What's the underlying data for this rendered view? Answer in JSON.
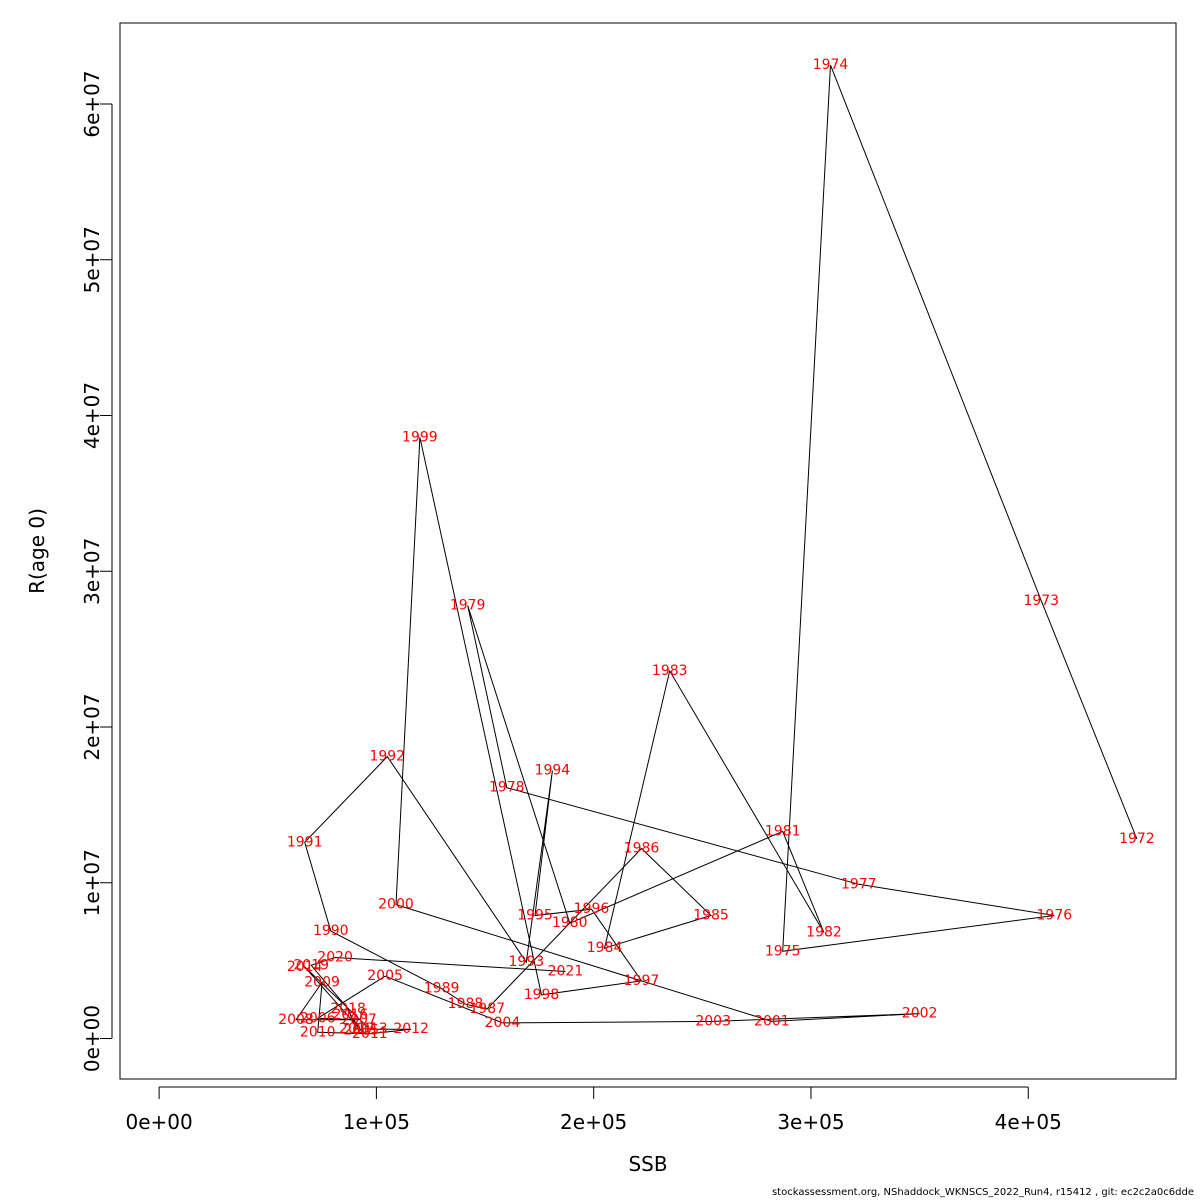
{
  "chart_data": {
    "type": "line",
    "xlabel": "SSB",
    "ylabel": "R(age 0)",
    "xlim": [
      -18000,
      468000
    ],
    "ylim": [
      -2600000,
      65200000
    ],
    "x_ticks": [
      0,
      100000,
      200000,
      300000,
      400000
    ],
    "x_tick_labels": [
      "0e+00",
      "1e+05",
      "2e+05",
      "3e+05",
      "4e+05"
    ],
    "y_ticks": [
      0,
      10000000,
      20000000,
      30000000,
      40000000,
      50000000,
      60000000
    ],
    "y_tick_labels": [
      "0e+00",
      "1e+07",
      "2e+07",
      "3e+07",
      "4e+07",
      "5e+07",
      "6e+07"
    ],
    "grid": false,
    "line_color": "#000000",
    "label_color": "#ff0000",
    "points": [
      {
        "year": "1972",
        "x": 450000,
        "y": 12800000
      },
      {
        "year": "1973",
        "x": 406000,
        "y": 28100000
      },
      {
        "year": "1974",
        "x": 309000,
        "y": 62500000
      },
      {
        "year": "1975",
        "x": 287000,
        "y": 5600000
      },
      {
        "year": "1976",
        "x": 412000,
        "y": 7900000
      },
      {
        "year": "1977",
        "x": 322000,
        "y": 9900000
      },
      {
        "year": "1978",
        "x": 160000,
        "y": 16100000
      },
      {
        "year": "1979",
        "x": 142000,
        "y": 27800000
      },
      {
        "year": "1980",
        "x": 189000,
        "y": 7400000
      },
      {
        "year": "1981",
        "x": 287000,
        "y": 13300000
      },
      {
        "year": "1982",
        "x": 306000,
        "y": 6800000
      },
      {
        "year": "1983",
        "x": 235000,
        "y": 23600000
      },
      {
        "year": "1984",
        "x": 205000,
        "y": 5800000
      },
      {
        "year": "1985",
        "x": 254000,
        "y": 7900000
      },
      {
        "year": "1986",
        "x": 222000,
        "y": 12200000
      },
      {
        "year": "1987",
        "x": 151000,
        "y": 1900000
      },
      {
        "year": "1988",
        "x": 141000,
        "y": 2200000
      },
      {
        "year": "1989",
        "x": 130000,
        "y": 3200000
      },
      {
        "year": "1990",
        "x": 79000,
        "y": 6900000
      },
      {
        "year": "1991",
        "x": 67000,
        "y": 12600000
      },
      {
        "year": "1992",
        "x": 105000,
        "y": 18100000
      },
      {
        "year": "1993",
        "x": 169000,
        "y": 4900000
      },
      {
        "year": "1994",
        "x": 181000,
        "y": 17200000
      },
      {
        "year": "1995",
        "x": 173000,
        "y": 7900000
      },
      {
        "year": "1996",
        "x": 199000,
        "y": 8300000
      },
      {
        "year": "1997",
        "x": 222000,
        "y": 3700000
      },
      {
        "year": "1998",
        "x": 176000,
        "y": 2800000
      },
      {
        "year": "1999",
        "x": 120000,
        "y": 38600000
      },
      {
        "year": "2000",
        "x": 109000,
        "y": 8600000
      },
      {
        "year": "2001",
        "x": 282000,
        "y": 1100000
      },
      {
        "year": "2002",
        "x": 350000,
        "y": 1600000
      },
      {
        "year": "2003",
        "x": 255000,
        "y": 1100000
      },
      {
        "year": "2004",
        "x": 158000,
        "y": 1000000
      },
      {
        "year": "2005",
        "x": 104000,
        "y": 4000000
      },
      {
        "year": "2006",
        "x": 73000,
        "y": 1300000
      },
      {
        "year": "2007",
        "x": 92000,
        "y": 1200000
      },
      {
        "year": "2008",
        "x": 63000,
        "y": 1200000
      },
      {
        "year": "2009",
        "x": 75000,
        "y": 3600000
      },
      {
        "year": "2010",
        "x": 73000,
        "y": 400000
      },
      {
        "year": "2011",
        "x": 97000,
        "y": 300000
      },
      {
        "year": "2012",
        "x": 116000,
        "y": 600000
      },
      {
        "year": "2013",
        "x": 97000,
        "y": 600000
      },
      {
        "year": "2014",
        "x": 67000,
        "y": 4600000
      },
      {
        "year": "2015",
        "x": 93000,
        "y": 500000
      },
      {
        "year": "2016",
        "x": 88000,
        "y": 1500000
      },
      {
        "year": "2017",
        "x": 91000,
        "y": 600000
      },
      {
        "year": "2018",
        "x": 87000,
        "y": 1900000
      },
      {
        "year": "2019",
        "x": 70000,
        "y": 4700000
      },
      {
        "year": "2020",
        "x": 81000,
        "y": 5200000
      },
      {
        "year": "2021",
        "x": 187000,
        "y": 4300000
      }
    ]
  },
  "footer": "stockassessment.org, NShaddock_WKNSCS_2022_Run4, r15412 , git: ec2c2a0c6dde"
}
